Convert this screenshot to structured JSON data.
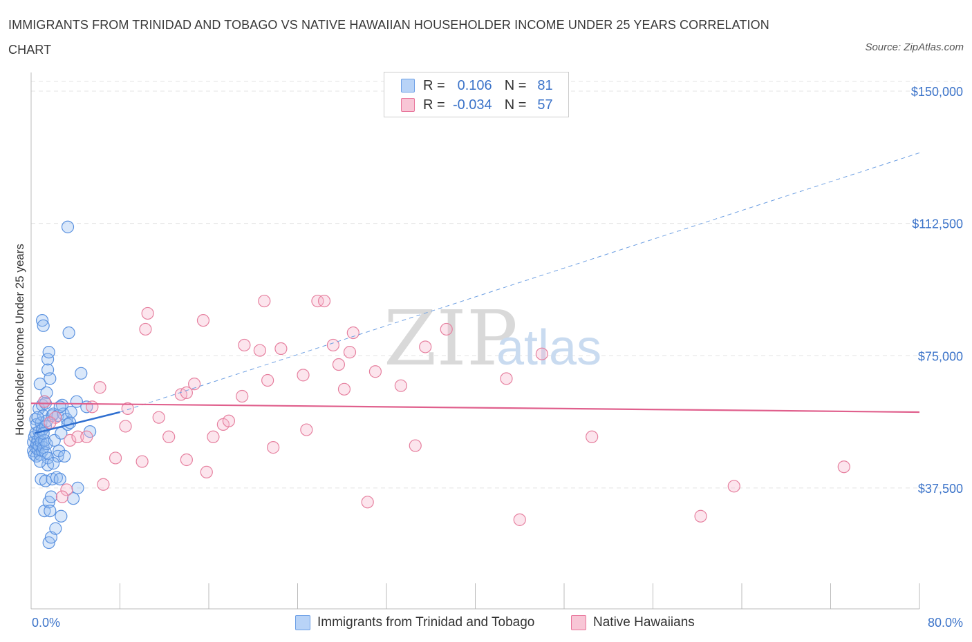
{
  "title": "IMMIGRANTS FROM TRINIDAD AND TOBAGO VS NATIVE HAWAIIAN HOUSEHOLDER INCOME UNDER 25 YEARS CORRELATION CHART",
  "source": "Source: ZipAtlas.com",
  "watermark": {
    "zip": "ZIP",
    "atlas": "atlas"
  },
  "legend": {
    "r_label": "R =",
    "n_label": "N =",
    "series": [
      {
        "name": "Immigrants from Trinidad and Tobago",
        "r": "0.106",
        "n": "81",
        "color": "#6c9fe6",
        "fill": "#b8d3f7"
      },
      {
        "name": "Native Hawaiians",
        "r": "-0.034",
        "n": "57",
        "color": "#e8749a",
        "fill": "#f8c6d6"
      }
    ]
  },
  "chart_data": {
    "type": "scatter",
    "title": "IMMIGRANTS FROM TRINIDAD AND TOBAGO VS NATIVE HAWAIIAN HOUSEHOLDER INCOME UNDER 25 YEARS CORRELATION CHART",
    "xlabel": "",
    "ylabel": "Householder Income Under 25 years",
    "xlim": [
      0,
      80
    ],
    "ylim": [
      0,
      150000
    ],
    "x_tick_labels": [
      "0.0%",
      "80.0%"
    ],
    "y_ticks": [
      37500,
      75000,
      112500,
      150000
    ],
    "y_tick_labels": [
      "$37,500",
      "$75,000",
      "$112,500",
      "$150,000"
    ],
    "grid": true,
    "series": [
      {
        "name": "Immigrants from Trinidad and Tobago",
        "color": "#3f7fd6",
        "trend": {
          "x": [
            0.3,
            8.0
          ],
          "y": [
            53000,
            59000
          ],
          "dashed_extension_to_x": 80,
          "dashed_end_y": 132500
        },
        "points": [
          [
            0.2,
            50500
          ],
          [
            0.2,
            48000
          ],
          [
            0.3,
            47000
          ],
          [
            0.3,
            52000
          ],
          [
            0.4,
            49000
          ],
          [
            0.4,
            53000
          ],
          [
            0.4,
            57000
          ],
          [
            0.5,
            50000
          ],
          [
            0.5,
            46500
          ],
          [
            0.5,
            55500
          ],
          [
            0.6,
            51000
          ],
          [
            0.6,
            48500
          ],
          [
            0.7,
            60000
          ],
          [
            0.7,
            53500
          ],
          [
            0.7,
            49500
          ],
          [
            0.8,
            67000
          ],
          [
            0.8,
            52000
          ],
          [
            0.8,
            47000
          ],
          [
            0.9,
            56000
          ],
          [
            0.9,
            50500
          ],
          [
            0.9,
            40000
          ],
          [
            1.0,
            85000
          ],
          [
            1.0,
            61000
          ],
          [
            1.0,
            54000
          ],
          [
            1.0,
            48000
          ],
          [
            1.1,
            83500
          ],
          [
            1.1,
            58000
          ],
          [
            1.1,
            49000
          ],
          [
            1.2,
            62000
          ],
          [
            1.2,
            51000
          ],
          [
            1.2,
            31000
          ],
          [
            1.3,
            55000
          ],
          [
            1.3,
            47500
          ],
          [
            1.3,
            39500
          ],
          [
            1.4,
            64500
          ],
          [
            1.4,
            56500
          ],
          [
            1.4,
            50000
          ],
          [
            1.5,
            74000
          ],
          [
            1.5,
            71000
          ],
          [
            1.5,
            46000
          ],
          [
            1.5,
            44000
          ],
          [
            1.6,
            76000
          ],
          [
            1.6,
            33500
          ],
          [
            1.6,
            22000
          ],
          [
            1.7,
            68500
          ],
          [
            1.7,
            31000
          ],
          [
            1.8,
            35000
          ],
          [
            1.8,
            23500
          ],
          [
            1.9,
            58000
          ],
          [
            1.9,
            40000
          ],
          [
            2.0,
            58500
          ],
          [
            2.1,
            51000
          ],
          [
            2.2,
            26000
          ],
          [
            2.3,
            40500
          ],
          [
            2.4,
            58000
          ],
          [
            2.4,
            46500
          ],
          [
            2.5,
            48000
          ],
          [
            2.6,
            40000
          ],
          [
            2.7,
            53000
          ],
          [
            2.7,
            29500
          ],
          [
            2.8,
            61000
          ],
          [
            2.9,
            58500
          ],
          [
            3.0,
            46500
          ],
          [
            3.2,
            57000
          ],
          [
            3.3,
            55500
          ],
          [
            3.4,
            81500
          ],
          [
            3.5,
            56000
          ],
          [
            3.6,
            59000
          ],
          [
            3.8,
            34500
          ],
          [
            4.1,
            62000
          ],
          [
            4.2,
            37500
          ],
          [
            4.5,
            70000
          ],
          [
            5.0,
            60500
          ],
          [
            5.3,
            53500
          ],
          [
            3.3,
            111500
          ],
          [
            0.6,
            57500
          ],
          [
            0.8,
            45000
          ],
          [
            1.1,
            53000
          ],
          [
            1.3,
            61500
          ],
          [
            2.0,
            44500
          ],
          [
            2.6,
            60500
          ]
        ]
      },
      {
        "name": "Native Hawaiians",
        "color": "#e0608d",
        "trend": {
          "x": [
            0,
            80
          ],
          "y": [
            61500,
            59000
          ]
        },
        "points": [
          [
            1.2,
            62000
          ],
          [
            2.2,
            57500
          ],
          [
            3.2,
            37000
          ],
          [
            3.5,
            51000
          ],
          [
            4.2,
            52000
          ],
          [
            5.0,
            52000
          ],
          [
            5.5,
            60500
          ],
          [
            6.2,
            66000
          ],
          [
            6.5,
            38500
          ],
          [
            7.6,
            46000
          ],
          [
            8.5,
            55000
          ],
          [
            10.0,
            45000
          ],
          [
            10.3,
            82500
          ],
          [
            10.5,
            87000
          ],
          [
            12.4,
            52000
          ],
          [
            13.5,
            64000
          ],
          [
            14.0,
            64500
          ],
          [
            14.0,
            45500
          ],
          [
            14.7,
            67000
          ],
          [
            15.5,
            85000
          ],
          [
            15.8,
            42000
          ],
          [
            16.4,
            52000
          ],
          [
            17.3,
            55500
          ],
          [
            17.8,
            56500
          ],
          [
            19.0,
            63500
          ],
          [
            19.2,
            78000
          ],
          [
            20.6,
            76500
          ],
          [
            21.0,
            90500
          ],
          [
            21.3,
            68000
          ],
          [
            21.8,
            49000
          ],
          [
            22.5,
            77000
          ],
          [
            24.5,
            69500
          ],
          [
            24.8,
            54000
          ],
          [
            25.8,
            90500
          ],
          [
            26.4,
            90500
          ],
          [
            27.2,
            78000
          ],
          [
            27.7,
            72500
          ],
          [
            28.2,
            65500
          ],
          [
            28.7,
            76000
          ],
          [
            29.0,
            81500
          ],
          [
            30.3,
            33500
          ],
          [
            31.0,
            70500
          ],
          [
            33.3,
            66500
          ],
          [
            34.6,
            49500
          ],
          [
            35.5,
            77500
          ],
          [
            37.4,
            82500
          ],
          [
            42.8,
            68500
          ],
          [
            44.0,
            28500
          ],
          [
            46.0,
            75500
          ],
          [
            50.5,
            52000
          ],
          [
            60.3,
            29500
          ],
          [
            63.3,
            38000
          ],
          [
            73.2,
            43500
          ],
          [
            11.5,
            57500
          ],
          [
            8.7,
            60000
          ],
          [
            2.8,
            35000
          ],
          [
            1.7,
            56000
          ]
        ]
      }
    ]
  }
}
